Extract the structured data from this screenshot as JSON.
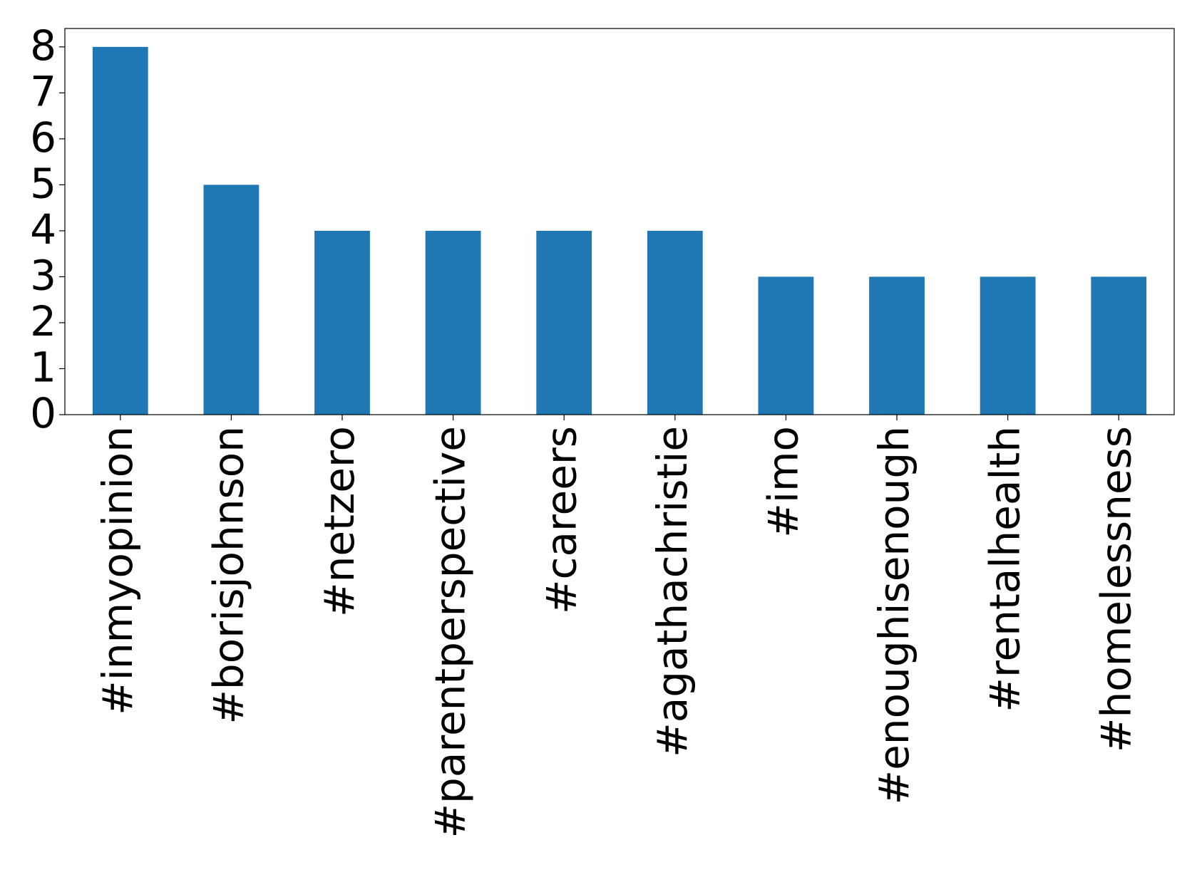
{
  "chart_data": {
    "type": "bar",
    "categories": [
      "#inmyopinion",
      "#borisjohnson",
      "#netzero",
      "#parentperspective",
      "#careers",
      "#agathachristie",
      "#imo",
      "#enoughisenough",
      "#rentalhealth",
      "#homelessness"
    ],
    "values": [
      8,
      5,
      4,
      4,
      4,
      4,
      3,
      3,
      3,
      3
    ],
    "color": "#1f77b4",
    "ylim": [
      0,
      8.4
    ],
    "yticks": [
      0,
      1,
      2,
      3,
      4,
      5,
      6,
      7,
      8
    ],
    "grid": false
  }
}
